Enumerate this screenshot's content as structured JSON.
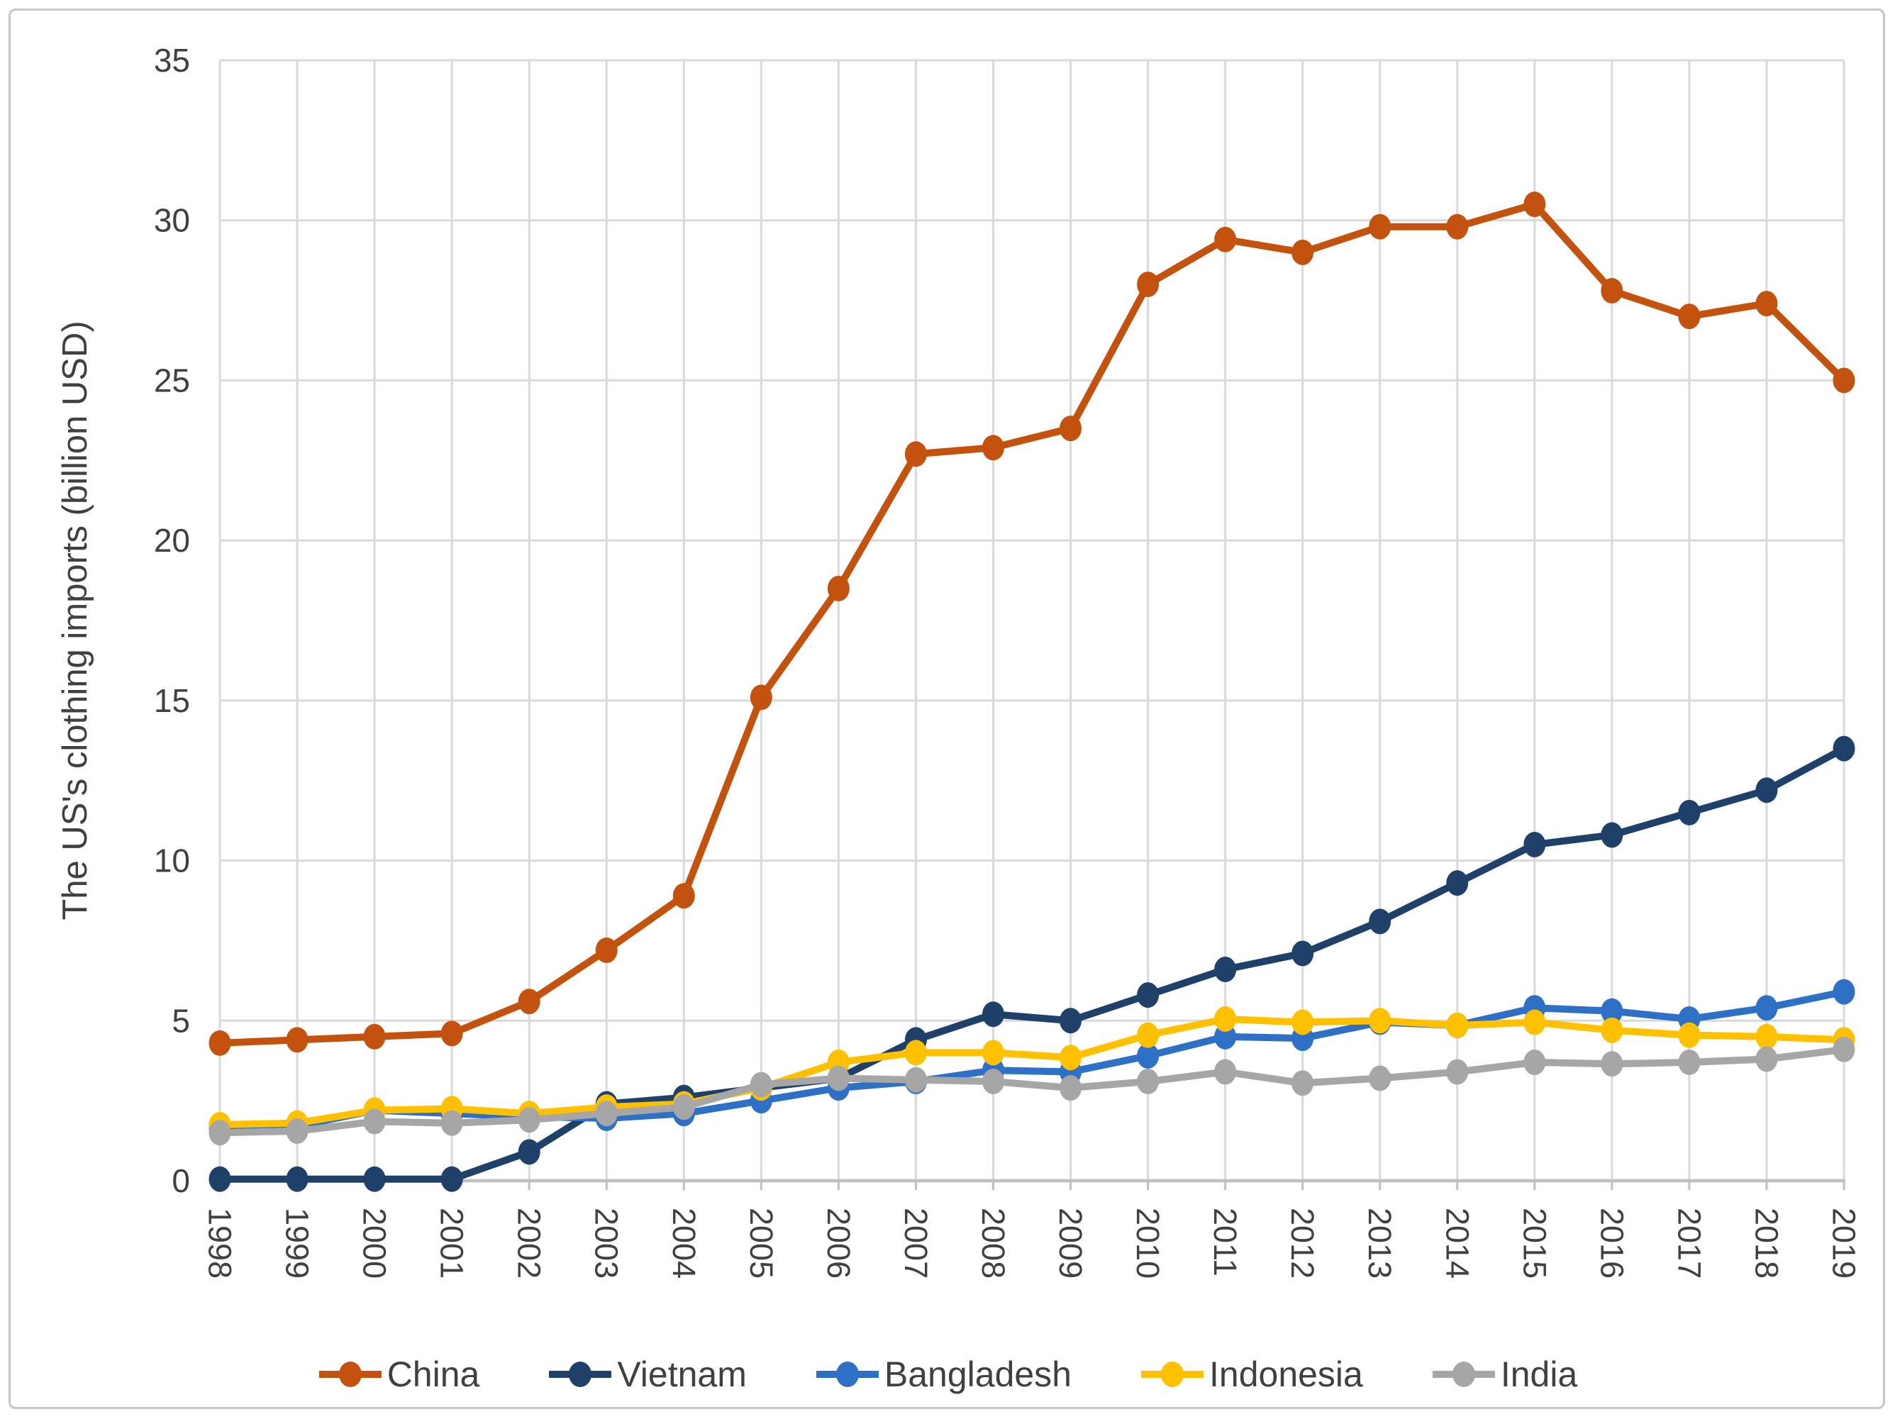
{
  "figure": {
    "background_color": "#ffffff",
    "border_color": "#c6c6c6",
    "text_color": "#404040",
    "gridline_color": "#d9d9d9",
    "axis_line_color": "#bfbfbf"
  },
  "chart_data": {
    "type": "line",
    "title": "",
    "xlabel": "",
    "ylabel": "The US's clothing imports (billion USD)",
    "ylim": [
      0,
      35
    ],
    "yticks": [
      0,
      5,
      10,
      15,
      20,
      25,
      30,
      35
    ],
    "grid": "both",
    "legend_position": "bottom",
    "marker_style": "filled-circle",
    "categories": [
      "1998",
      "1999",
      "2000",
      "2001",
      "2002",
      "2003",
      "2004",
      "2005",
      "2006",
      "2007",
      "2008",
      "2009",
      "2010",
      "2011",
      "2012",
      "2013",
      "2014",
      "2015",
      "2016",
      "2017",
      "2018",
      "2019"
    ],
    "series": [
      {
        "name": "China",
        "color": "#c2520d",
        "values": [
          4.3,
          4.4,
          4.5,
          4.6,
          5.6,
          7.2,
          8.9,
          15.1,
          18.5,
          22.7,
          22.9,
          23.5,
          28.0,
          29.4,
          29.0,
          29.8,
          29.8,
          30.5,
          27.8,
          27.0,
          27.4,
          25.0
        ]
      },
      {
        "name": "Vietnam",
        "color": "#1f4068",
        "values": [
          0.05,
          0.05,
          0.05,
          0.05,
          0.9,
          2.4,
          2.6,
          2.9,
          3.2,
          4.4,
          5.2,
          5.0,
          5.8,
          6.6,
          7.1,
          8.1,
          9.3,
          10.5,
          10.8,
          11.5,
          12.2,
          13.5
        ]
      },
      {
        "name": "Bangladesh",
        "color": "#2d70c5",
        "values": [
          1.65,
          1.7,
          2.2,
          2.1,
          2.0,
          1.95,
          2.1,
          2.5,
          2.9,
          3.1,
          3.45,
          3.4,
          3.9,
          4.5,
          4.45,
          4.95,
          4.85,
          5.4,
          5.3,
          5.05,
          5.4,
          5.9
        ]
      },
      {
        "name": "Indonesia",
        "color": "#ffc000",
        "values": [
          1.75,
          1.8,
          2.2,
          2.25,
          2.1,
          2.3,
          2.4,
          2.9,
          3.7,
          4.0,
          4.0,
          3.85,
          4.55,
          5.05,
          4.95,
          5.0,
          4.85,
          4.95,
          4.7,
          4.55,
          4.5,
          4.4
        ]
      },
      {
        "name": "India",
        "color": "#a6a6a6",
        "values": [
          1.5,
          1.55,
          1.85,
          1.8,
          1.9,
          2.1,
          2.3,
          3.0,
          3.2,
          3.15,
          3.1,
          2.9,
          3.1,
          3.4,
          3.05,
          3.2,
          3.4,
          3.7,
          3.65,
          3.7,
          3.8,
          4.1
        ]
      }
    ]
  }
}
